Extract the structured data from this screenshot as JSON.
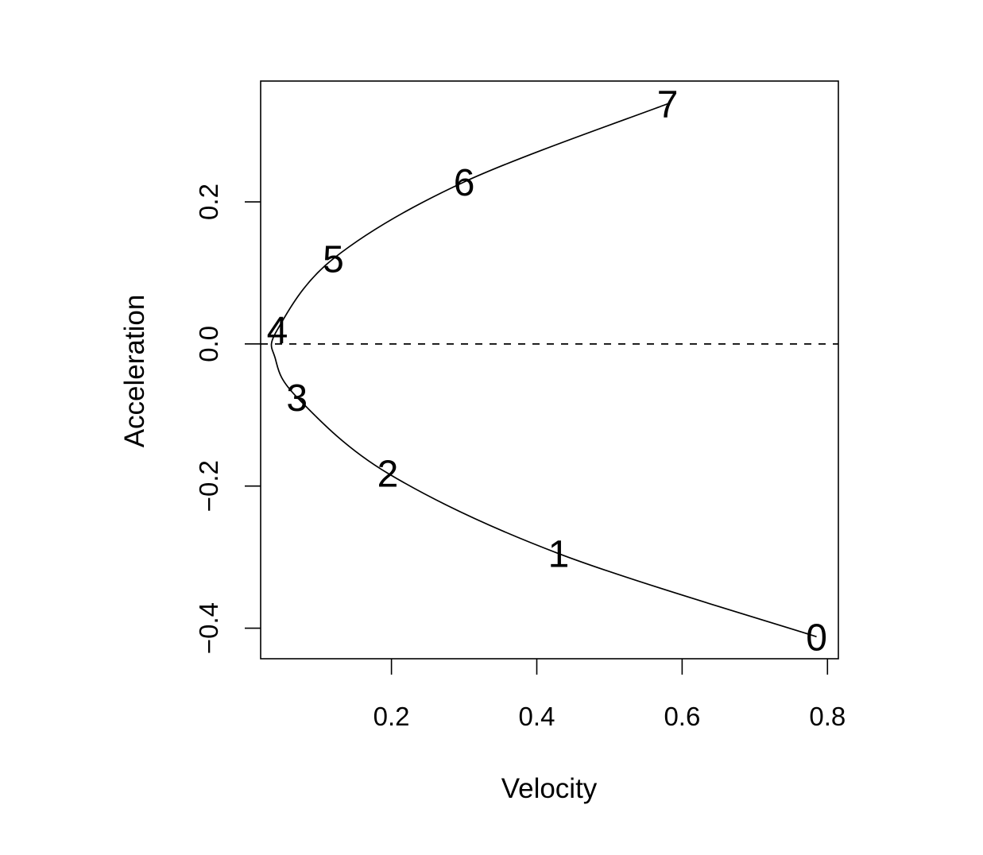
{
  "chart_data": {
    "type": "line",
    "title": "",
    "xlabel": "Velocity",
    "ylabel": "Acceleration",
    "xlim": [
      0.02,
      0.815
    ],
    "ylim": [
      -0.443,
      0.37
    ],
    "xticks": [
      0.2,
      0.4,
      0.6,
      0.8
    ],
    "xtick_labels": [
      "0.2",
      "0.4",
      "0.6",
      "0.8"
    ],
    "yticks": [
      -0.4,
      -0.2,
      0.0,
      0.2
    ],
    "ytick_labels": [
      "−0.4",
      "−0.2",
      "0.0",
      "0.2"
    ],
    "grid": false,
    "reference_line": {
      "y": 0.0,
      "style": "dashed"
    },
    "series": [
      {
        "points": [
          {
            "label": "0",
            "x": 0.785,
            "y": -0.412
          },
          {
            "label": "1",
            "x": 0.43,
            "y": -0.295
          },
          {
            "label": "2",
            "x": 0.195,
            "y": -0.182
          },
          {
            "label": "3",
            "x": 0.07,
            "y": -0.075
          },
          {
            "label": "4",
            "x": 0.043,
            "y": 0.02
          },
          {
            "label": "5",
            "x": 0.12,
            "y": 0.12
          },
          {
            "label": "6",
            "x": 0.3,
            "y": 0.228
          },
          {
            "label": "7",
            "x": 0.58,
            "y": 0.338
          }
        ]
      }
    ],
    "vertex": {
      "x": 0.04,
      "y": -0.02
    }
  }
}
